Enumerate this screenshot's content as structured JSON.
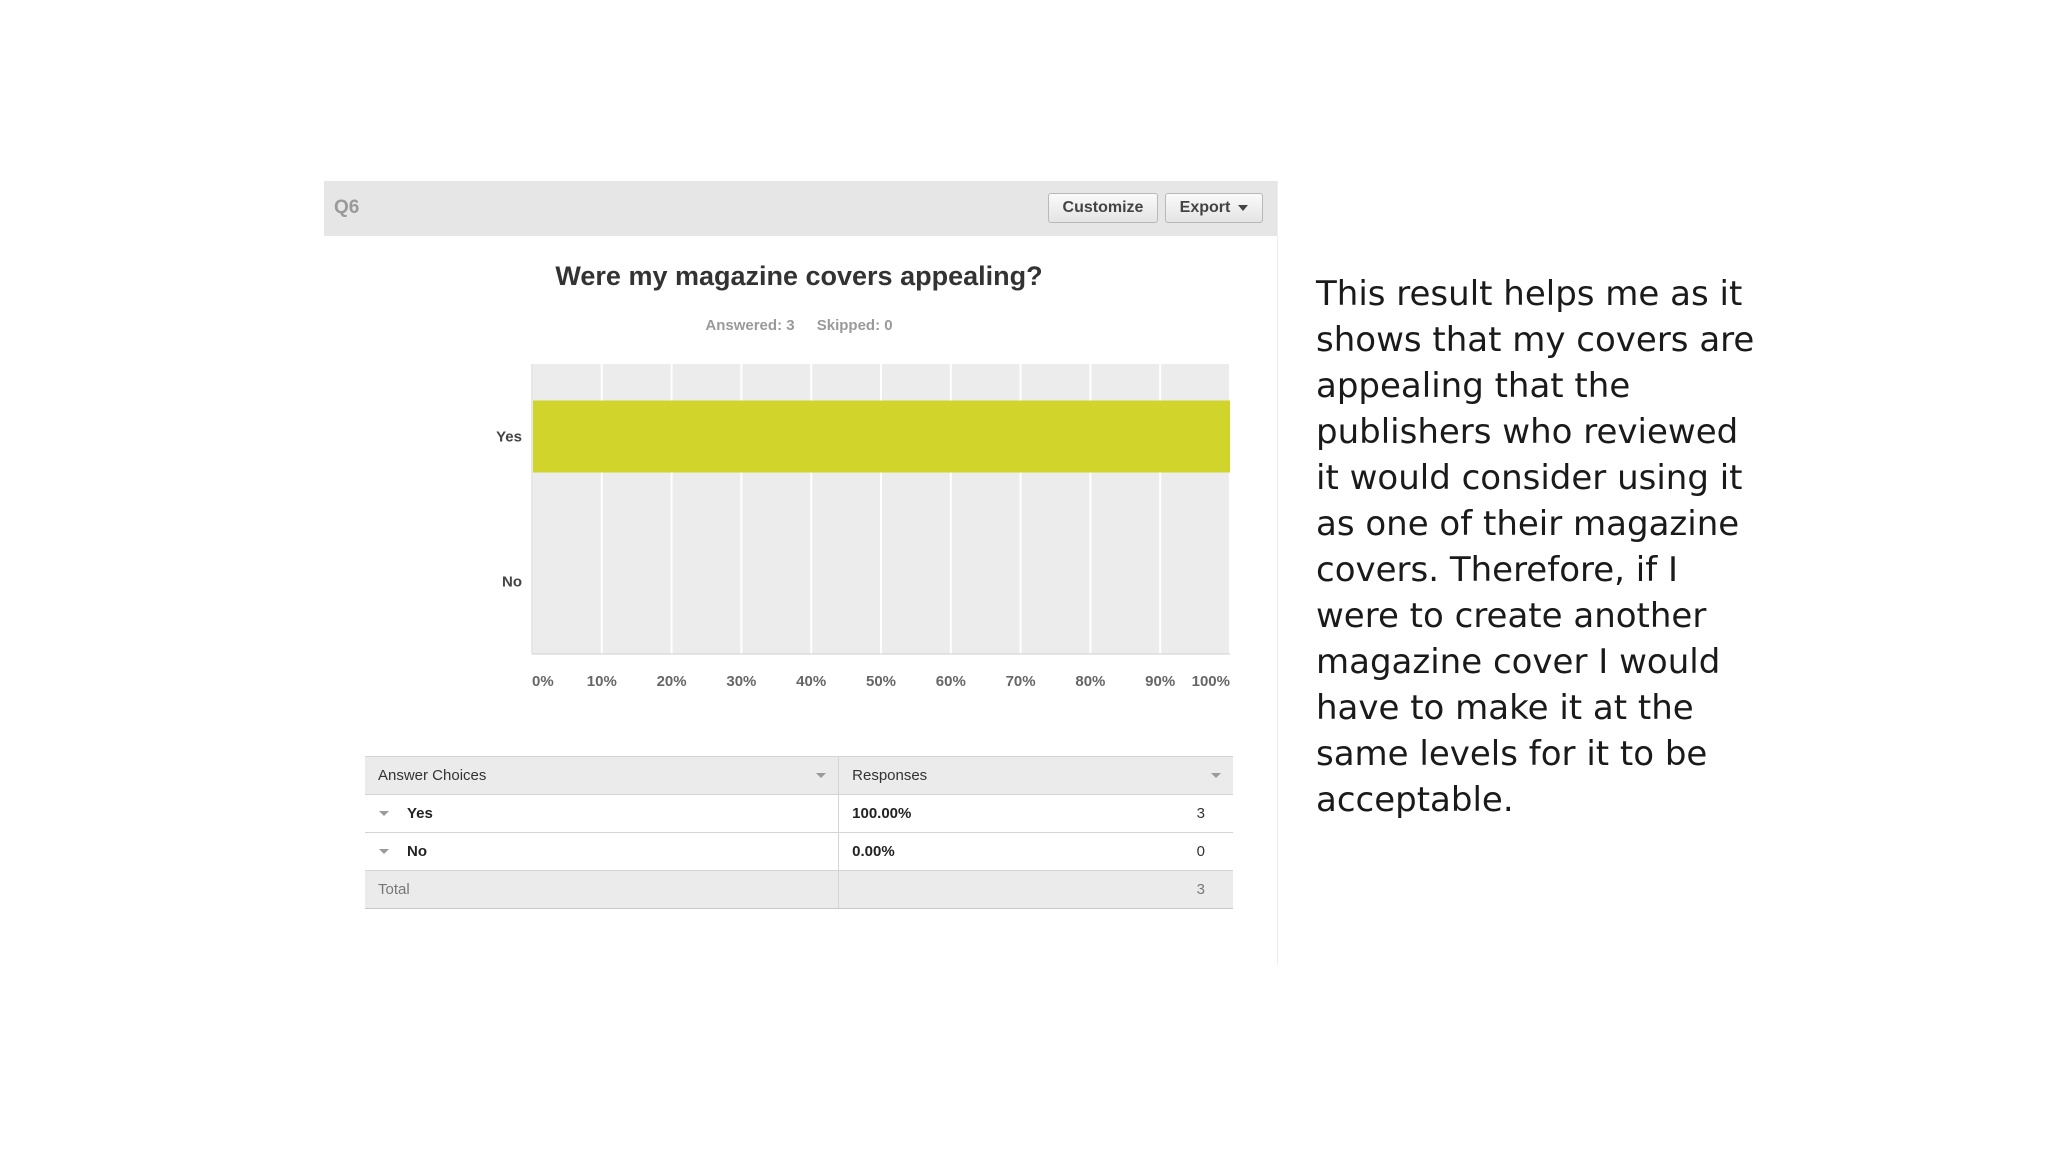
{
  "panel": {
    "question_label": "Q6",
    "customize_label": "Customize",
    "export_label": "Export"
  },
  "chart_data": {
    "type": "bar",
    "orientation": "horizontal",
    "title": "Were my magazine covers appealing?",
    "answered_label": "Answered: 3",
    "skipped_label": "Skipped: 0",
    "categories": [
      "Yes",
      "No"
    ],
    "values": [
      100,
      0
    ],
    "x_ticks": [
      "0%",
      "10%",
      "20%",
      "30%",
      "40%",
      "50%",
      "60%",
      "70%",
      "80%",
      "90%",
      "100%"
    ],
    "xlim": [
      0,
      100
    ],
    "bar_color": "#d1d42a",
    "grid": true
  },
  "table": {
    "header_choices": "Answer Choices",
    "header_responses": "Responses",
    "rows": [
      {
        "choice": "Yes",
        "percent": "100.00%",
        "count": "3"
      },
      {
        "choice": "No",
        "percent": "0.00%",
        "count": "0"
      }
    ],
    "total_label": "Total",
    "total_count": "3"
  },
  "commentary": "This result helps me as it shows that my covers are appealing that the publishers who reviewed it would consider using it as one of their magazine covers. Therefore, if I were to create another magazine cover I would have to make it at the same levels for it to be acceptable."
}
